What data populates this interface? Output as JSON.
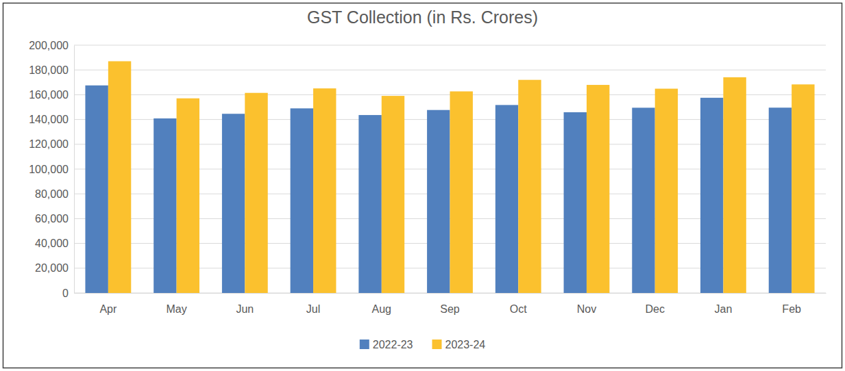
{
  "chart_data": {
    "type": "bar",
    "title": "GST Collection (in Rs. Crores)",
    "categories": [
      "Apr",
      "May",
      "Jun",
      "Jul",
      "Aug",
      "Sep",
      "Oct",
      "Nov",
      "Dec",
      "Jan",
      "Feb"
    ],
    "series": [
      {
        "name": "2022-23",
        "color": "#5180be",
        "values": [
          167540,
          140885,
          144616,
          148995,
          143612,
          147686,
          151718,
          145867,
          149507,
          157554,
          149577
        ]
      },
      {
        "name": "2023-24",
        "color": "#fbc12e",
        "values": [
          187035,
          157090,
          161497,
          165105,
          159069,
          162712,
          172003,
          167929,
          164882,
          174106,
          168337
        ]
      }
    ],
    "ylim": [
      0,
      200000
    ],
    "yticks": [
      0,
      {
        "value": 20000,
        "label": "20,000"
      },
      {
        "value": 40000,
        "label": "40,000"
      },
      {
        "value": 60000,
        "label": "60,000"
      },
      {
        "value": 80000,
        "label": "80,000"
      },
      {
        "value": 100000,
        "label": "100,000"
      },
      {
        "value": 120000,
        "label": "120,000"
      },
      {
        "value": 140000,
        "label": "140,000"
      },
      {
        "value": 160000,
        "label": "160,000"
      },
      {
        "value": 180000,
        "label": "180,000"
      },
      {
        "value": 200000,
        "label": "200,000"
      }
    ],
    "grid": true,
    "legend": "bottom"
  }
}
